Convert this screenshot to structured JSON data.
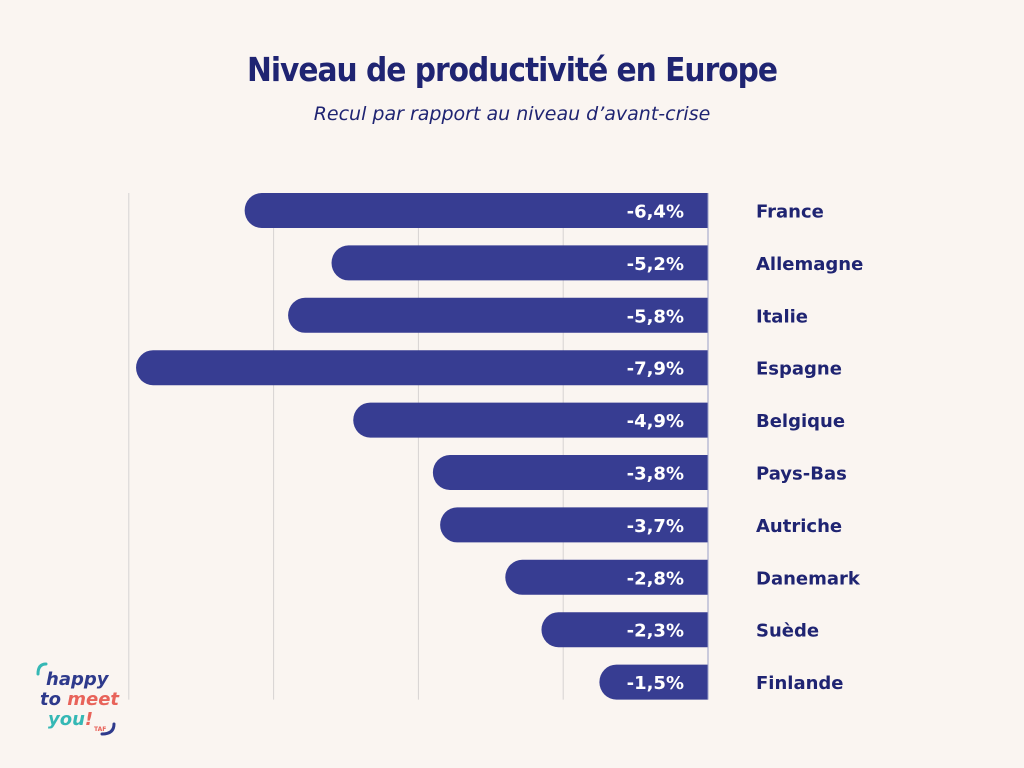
{
  "chart_data": {
    "type": "bar",
    "orientation": "horizontal",
    "title": "Niveau de productivité en Europe",
    "subtitle": "Recul par rapport au niveau d’avant-crise",
    "categories": [
      "France",
      "Allemagne",
      "Italie",
      "Espagne",
      "Belgique",
      "Pays-Bas",
      "Autriche",
      "Danemark",
      "Suède",
      "Finlande"
    ],
    "values": [
      -6.4,
      -5.2,
      -5.8,
      -7.9,
      -4.9,
      -3.8,
      -3.7,
      -2.8,
      -2.3,
      -1.5
    ],
    "labels": [
      "-6,4%",
      "-5,2%",
      "-5,8%",
      "-7,9%",
      "-4,9%",
      "-3,8%",
      "-3,7%",
      "-2,8%",
      "-2,3%",
      "-1,5%"
    ],
    "xlim": [
      -8,
      0
    ],
    "gridlines": [
      -8,
      -6,
      -4,
      -2
    ],
    "grid": true,
    "xlabel": "",
    "ylabel": "",
    "colors": {
      "bar": "#373d92",
      "text": "#1f2472",
      "grid": "#d6d3d2",
      "background": "#faf5f1"
    }
  },
  "logo": {
    "text": [
      "happy",
      "to meet",
      "you!"
    ],
    "mark": "TAF"
  }
}
